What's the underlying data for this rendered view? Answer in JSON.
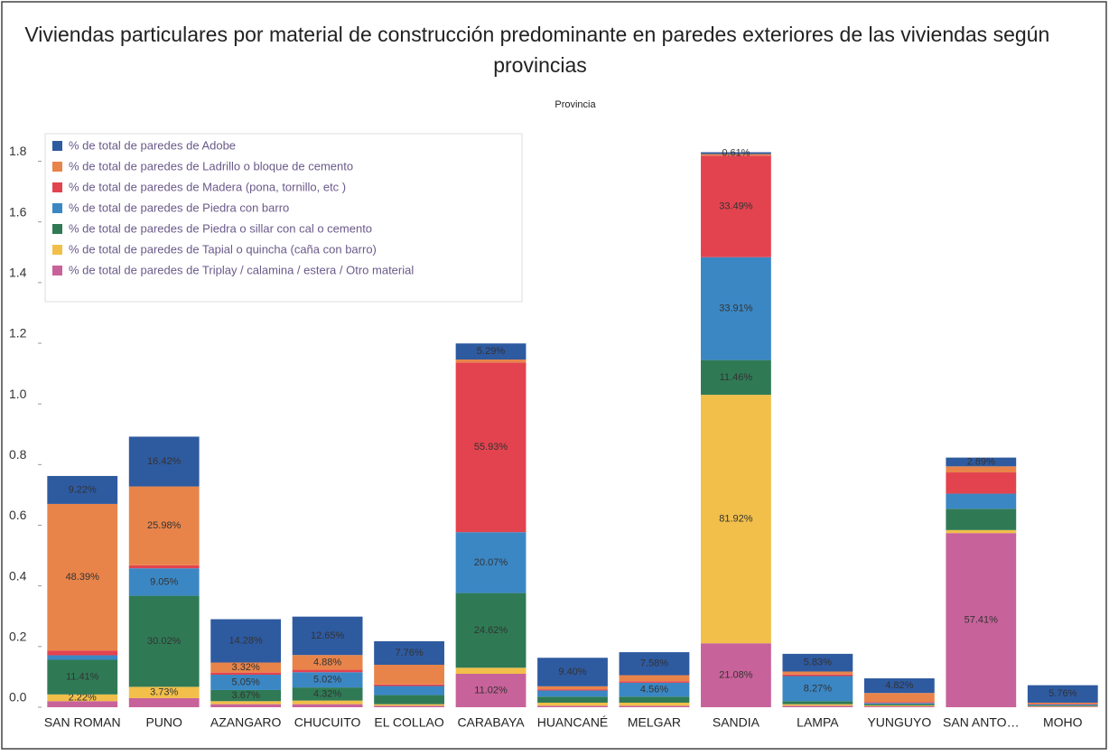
{
  "chart_data": {
    "type": "stacked_bar",
    "title": "Viviendas particulares por material de construcción predominante en paredes exteriores de las viviendas según provincias",
    "subtitle": "Provincia",
    "categories": [
      "SAN ROMAN",
      "PUNO",
      "AZANGARO",
      "CHUCUITO",
      "EL COLLAO",
      "CARABAYA",
      "HUANCANÉ",
      "MELGAR",
      "SANDIA",
      "LAMPA",
      "YUNGUYO",
      "SAN ANTO…",
      "MOHO"
    ],
    "ylim": [
      0,
      1.87
    ],
    "yticks": [
      {
        "value": 0,
        "label": "0.0"
      },
      0.2,
      0.4,
      0.6,
      0.8,
      {
        "value": 1,
        "label": "1.0"
      },
      1.2,
      1.4,
      1.6,
      1.8
    ],
    "grid": false,
    "legend": "top-left",
    "series": [
      {
        "name": "% de total de paredes de Adobe",
        "color": "#2e5aa0",
        "values": [
          0.0922,
          0.1642,
          0.1428,
          0.1265,
          0.0776,
          0.0529,
          0.094,
          0.0758,
          0.0061,
          0.0583,
          0.0482,
          0.0289,
          0.0576
        ],
        "value_labels": [
          "9.22%",
          "16.42%",
          "14.28%",
          "12.65%",
          "7.76%",
          "5.29%",
          "9.40%",
          "7.58%",
          "0.61%",
          "5.83%",
          "4.82%",
          "2.89%",
          "5.76%"
        ]
      },
      {
        "name": "% de total de paredes de Ladrillo o bloque de cemento",
        "color": "#e8844a",
        "values": [
          0.4839,
          0.2598,
          0.0332,
          0.0488,
          0.065,
          0.01,
          0.01,
          0.02,
          0.005,
          0.01,
          0.03,
          0.02,
          0.004
        ],
        "value_labels": [
          "48.39%",
          "25.98%",
          "3.32%",
          "4.88%",
          null,
          null,
          null,
          null,
          null,
          null,
          null,
          null,
          null
        ]
      },
      {
        "name": "% de total de paredes de Madera (pona, tornillo, etc )",
        "color": "#e3434f",
        "values": [
          0.015,
          0.01,
          0.007,
          0.008,
          0.005,
          0.5593,
          0.004,
          0.005,
          0.3349,
          0.005,
          0.003,
          0.07,
          0.002
        ],
        "value_labels": [
          null,
          null,
          null,
          null,
          null,
          "55.93%",
          null,
          null,
          "33.49%",
          null,
          null,
          null,
          null
        ]
      },
      {
        "name": "% de total de paredes de Piedra con barro",
        "color": "#3b87c4",
        "values": [
          0.015,
          0.0905,
          0.0505,
          0.0502,
          0.03,
          0.2007,
          0.02,
          0.0456,
          0.3391,
          0.0827,
          0.004,
          0.05,
          0.003
        ],
        "value_labels": [
          null,
          "9.05%",
          "5.05%",
          "5.02%",
          null,
          "20.07%",
          null,
          "4.56%",
          "33.91%",
          "8.27%",
          null,
          null,
          null
        ]
      },
      {
        "name": "% de total de paredes de Piedra o sillar con cal o cemento",
        "color": "#2f7a55",
        "values": [
          0.1141,
          0.3002,
          0.0367,
          0.0432,
          0.03,
          0.2462,
          0.02,
          0.02,
          0.1146,
          0.01,
          0.004,
          0.07,
          0.002
        ],
        "value_labels": [
          "11.41%",
          "30.02%",
          "3.67%",
          "4.32%",
          null,
          "24.62%",
          null,
          null,
          "11.46%",
          null,
          null,
          null,
          null
        ]
      },
      {
        "name": "% de total de paredes de Tapial o quincha (caña con barro)",
        "color": "#f1bf4a",
        "values": [
          0.0222,
          0.0373,
          0.01,
          0.012,
          0.005,
          0.02,
          0.01,
          0.01,
          0.8192,
          0.005,
          0.003,
          0.01,
          0.002
        ],
        "value_labels": [
          "2.22%",
          "3.73%",
          null,
          null,
          null,
          null,
          null,
          null,
          "81.92%",
          null,
          null,
          null,
          null
        ]
      },
      {
        "name": "% de total de paredes de Triplay / calamina / estera / Otro material",
        "color": "#c8629a",
        "values": [
          0.02,
          0.03,
          0.01,
          0.01,
          0.005,
          0.1102,
          0.005,
          0.005,
          0.2108,
          0.005,
          0.003,
          0.5741,
          0.002
        ],
        "value_labels": [
          null,
          null,
          null,
          null,
          null,
          "11.02%",
          null,
          null,
          "21.08%",
          null,
          null,
          "57.41%",
          null
        ]
      }
    ]
  }
}
